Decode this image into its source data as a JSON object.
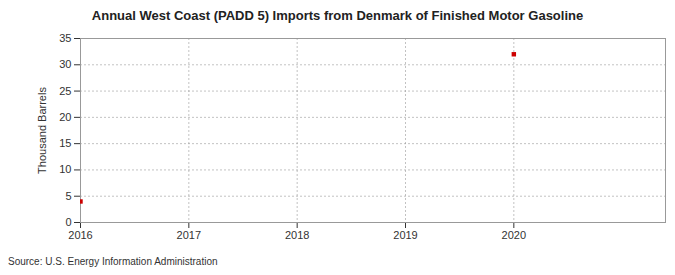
{
  "chart_data": {
    "type": "line",
    "title": "Annual West Coast (PADD 5) Imports from Denmark of Finished Motor Gasoline",
    "x": [
      2016,
      2017,
      2018,
      2019,
      2020
    ],
    "values": [
      4,
      null,
      null,
      null,
      32
    ],
    "color": "#cc0000",
    "marker": "square",
    "xlim": [
      2016,
      2021.4
    ],
    "xticks": [
      2016,
      2017,
      2018,
      2019,
      2020
    ],
    "ylim": [
      0,
      35
    ],
    "yticks": [
      0,
      5,
      10,
      15,
      20,
      25,
      30,
      35
    ],
    "y_label": "Thousand Barrels",
    "grid": true,
    "caption": "Source: U.S. Energy Information Administration"
  }
}
